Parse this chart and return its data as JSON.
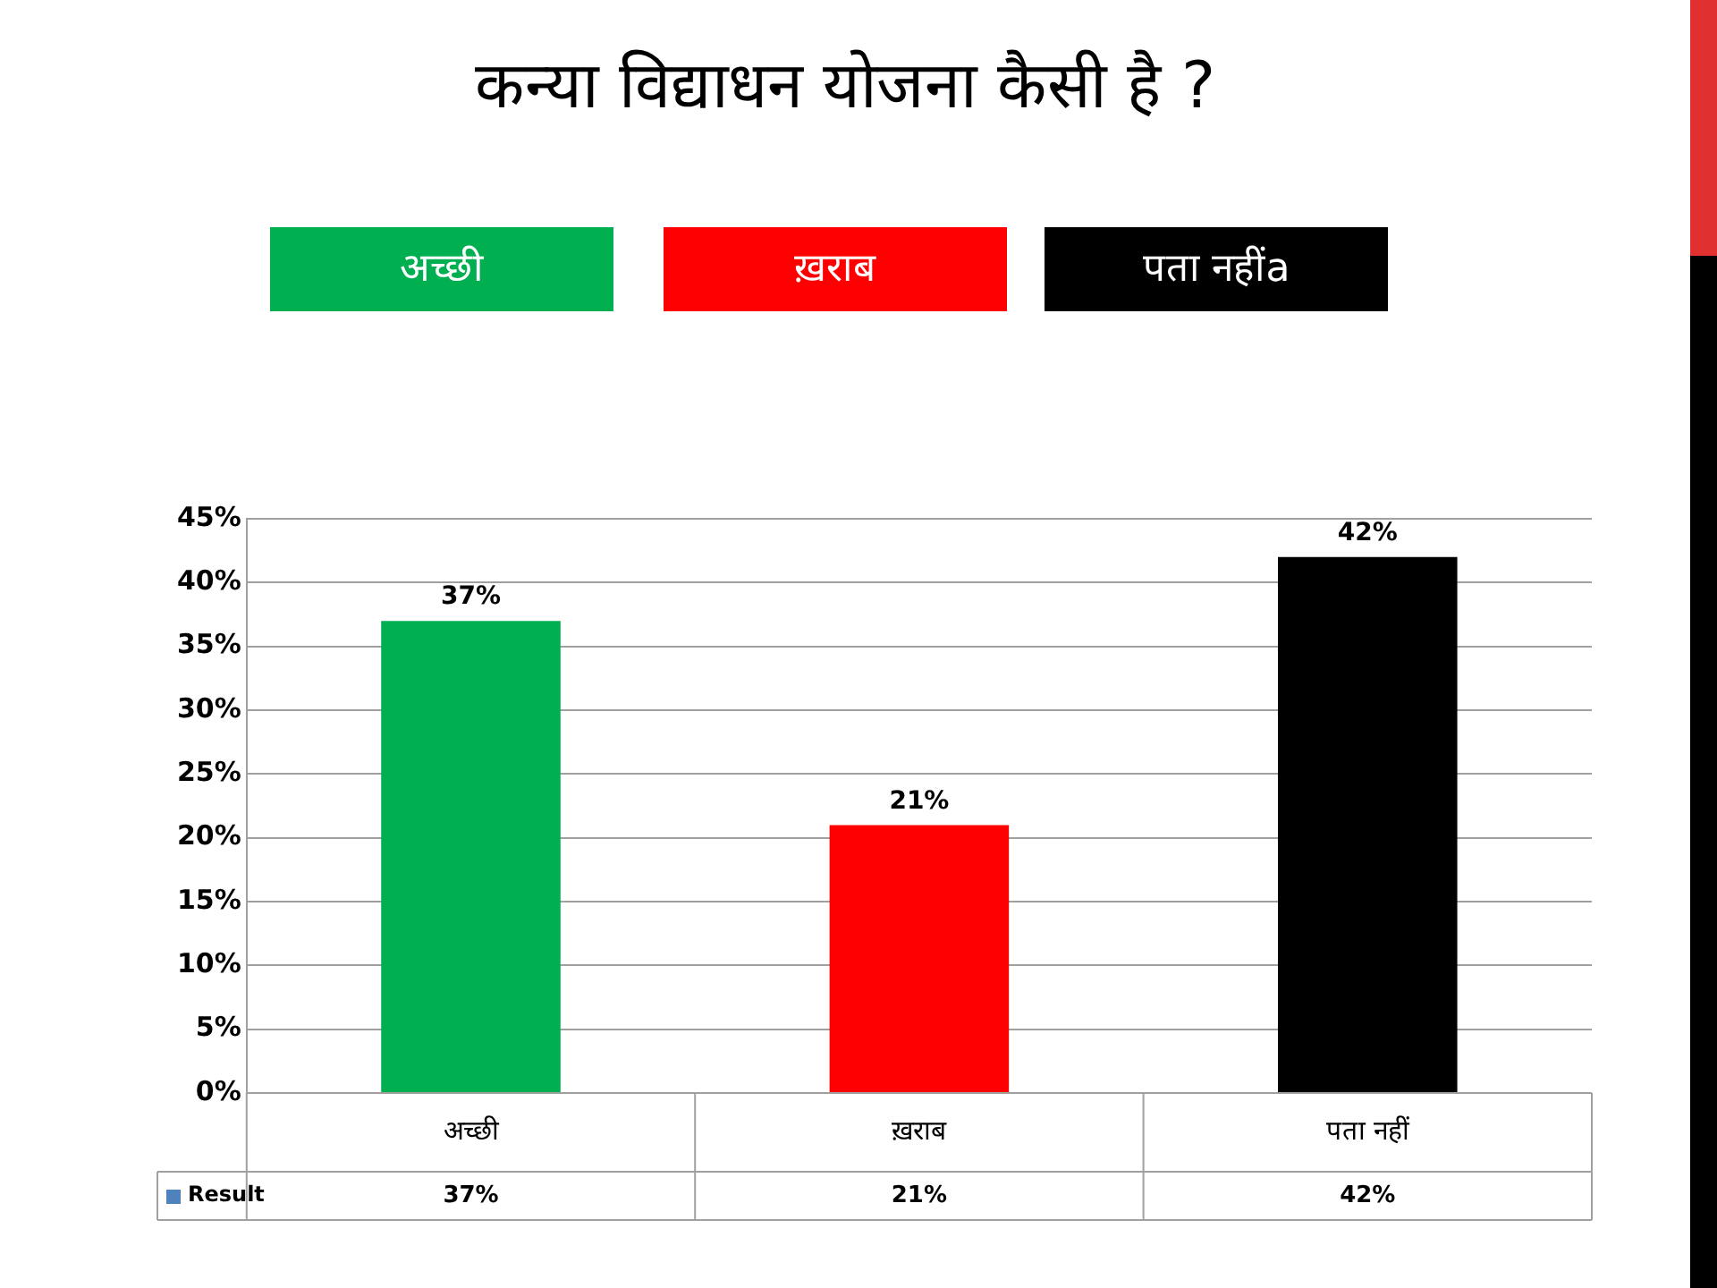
{
  "chart_data": {
    "type": "bar",
    "title": "कन्या विद्याधन योजना कैसी है ?",
    "categories": [
      "अच्छी",
      "ख़राब",
      "पता नहीं"
    ],
    "series": [
      {
        "name": "Result",
        "colors": [
          "#00b050",
          "#ff0000",
          "#000000"
        ],
        "values": [
          37,
          21,
          42
        ],
        "value_labels": [
          "37%",
          "21%",
          "42%"
        ]
      }
    ],
    "ylim": [
      0,
      45
    ],
    "yticks": [
      {
        "value": 0,
        "label": "0%"
      },
      {
        "value": 5,
        "label": "5%"
      },
      {
        "value": 10,
        "label": "10%"
      },
      {
        "value": 15,
        "label": "15%"
      },
      {
        "value": 20,
        "label": "20%"
      },
      {
        "value": 25,
        "label": "25%"
      },
      {
        "value": 30,
        "label": "30%"
      },
      {
        "value": 35,
        "label": "35%"
      },
      {
        "value": 40,
        "label": "40%"
      },
      {
        "value": 45,
        "label": "45%"
      }
    ],
    "grid": "y",
    "annotations": [
      "अच्छी",
      "ख़राब",
      "पता नहींa"
    ]
  }
}
